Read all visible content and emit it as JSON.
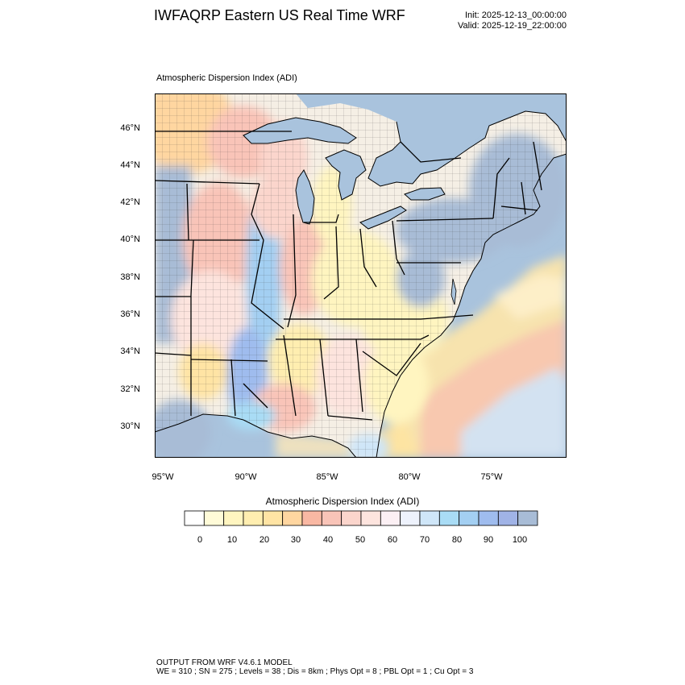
{
  "header": {
    "title": "IWFAQRP Eastern US Real Time WRF",
    "init": "Init: 2025-12-13_00:00:00",
    "valid": "Valid: 2025-12-19_22:00:00"
  },
  "map": {
    "subtitle": "Atmospheric Dispersion Index   (ADI)",
    "lat_labels": [
      "46°N",
      "44°N",
      "42°N",
      "40°N",
      "38°N",
      "36°N",
      "34°N",
      "32°N",
      "30°N"
    ],
    "lon_labels": [
      "95°W",
      "90°W",
      "85°W",
      "80°W",
      "75°W"
    ],
    "water_color": "#a9c3dd",
    "border_color": "#000000"
  },
  "colorbar": {
    "title": "Atmospheric Dispersion Index  (ADI)",
    "colors": [
      "#ffffff",
      "#fffbd8",
      "#fff5c0",
      "#ffeeb0",
      "#ffe4a4",
      "#ffd6a0",
      "#f9b8a3",
      "#f9c4b8",
      "#fbd5cc",
      "#fde4de",
      "#fcf0f4",
      "#eef2fc",
      "#cfe6f8",
      "#a9dcf5",
      "#a3cff2",
      "#9fbcee",
      "#a0b3e6",
      "#a8bcd6"
    ],
    "labels": [
      "0",
      "10",
      "20",
      "30",
      "40",
      "50",
      "60",
      "70",
      "80",
      "90",
      "100"
    ]
  },
  "footer": {
    "line1": "OUTPUT FROM WRF V4.6.1 MODEL",
    "line2": "WE = 310 ; SN = 275 ; Levels = 38 ; Dis = 8km ; Phys Opt = 8 ; PBL Opt = 1 ; Cu Opt = 3"
  }
}
